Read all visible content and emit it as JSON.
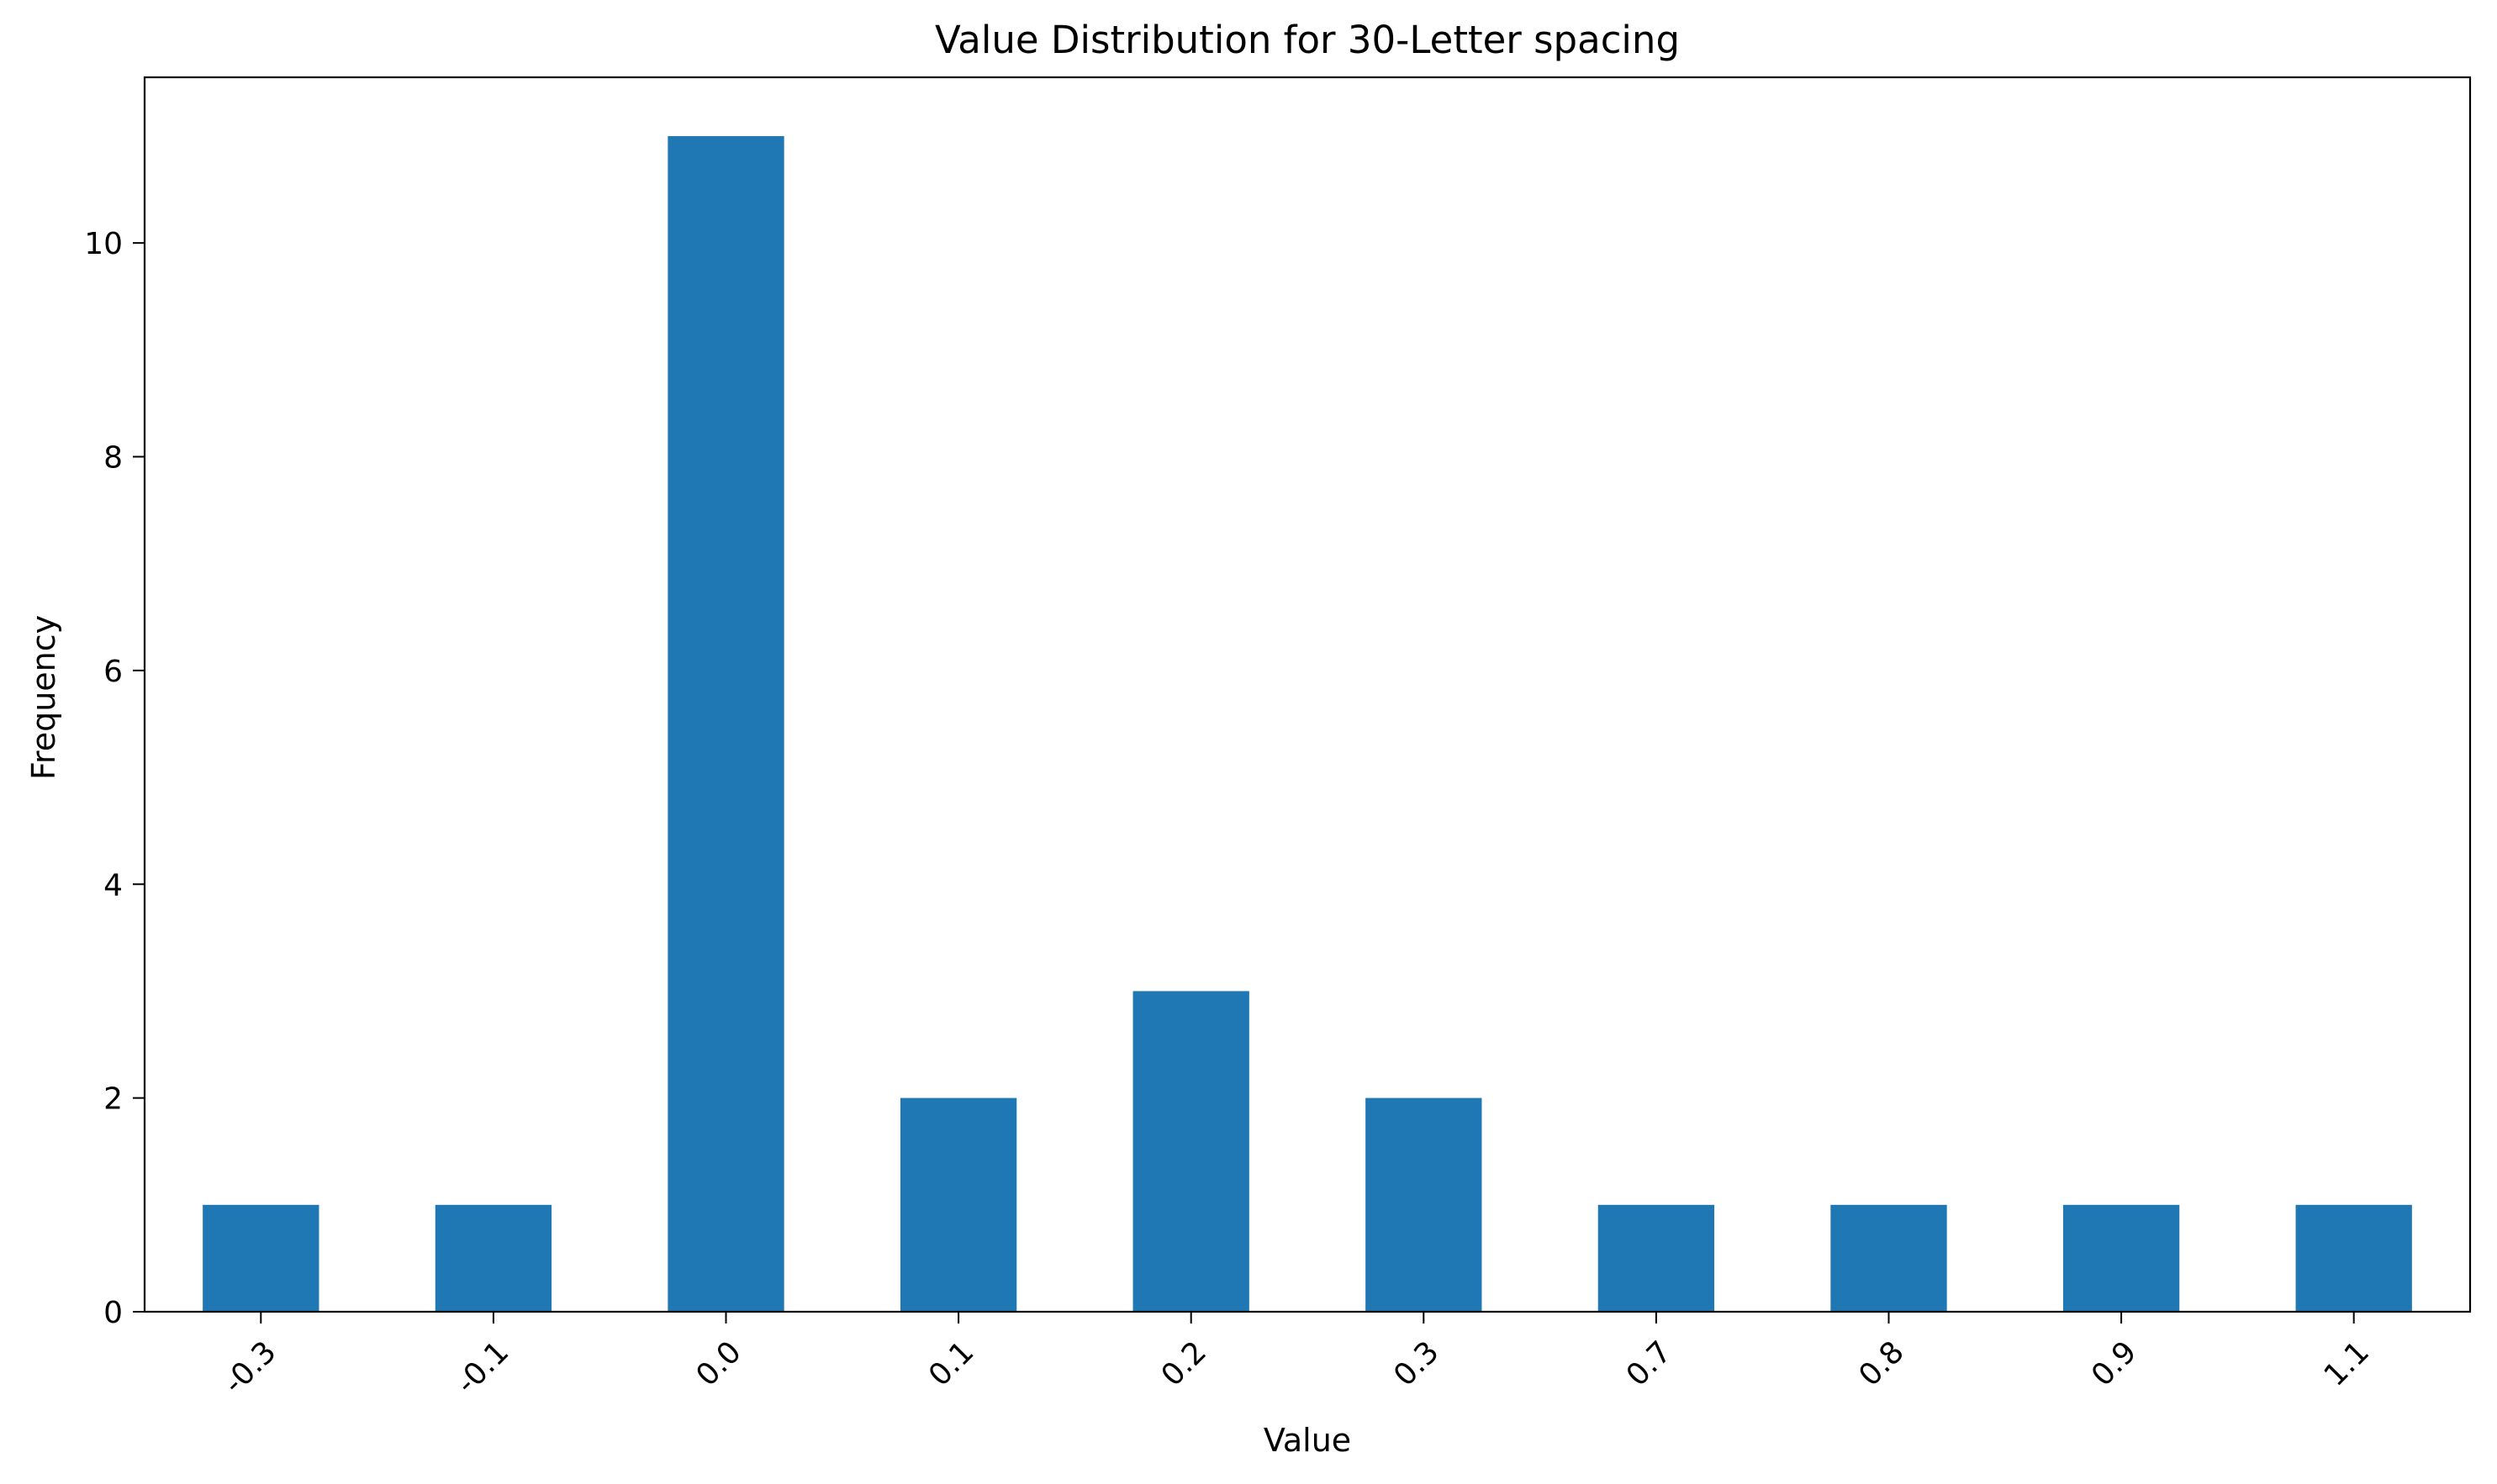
{
  "chart_data": {
    "type": "bar",
    "title": "Value Distribution for 30-Letter spacing",
    "xlabel": "Value",
    "ylabel": "Frequency",
    "categories": [
      "-0.3",
      "-0.1",
      "0.0",
      "0.1",
      "0.2",
      "0.3",
      "0.7",
      "0.8",
      "0.9",
      "1.1"
    ],
    "values": [
      1,
      1,
      11,
      2,
      3,
      2,
      1,
      1,
      1,
      1
    ],
    "ylim": [
      0,
      11.55
    ],
    "yticks": [
      0,
      2,
      4,
      6,
      8,
      10
    ],
    "x_tick_rotation_deg": 45,
    "grid": false,
    "legend": "none",
    "colors": {
      "bar": "#1f77b4",
      "axis": "#000000"
    }
  }
}
